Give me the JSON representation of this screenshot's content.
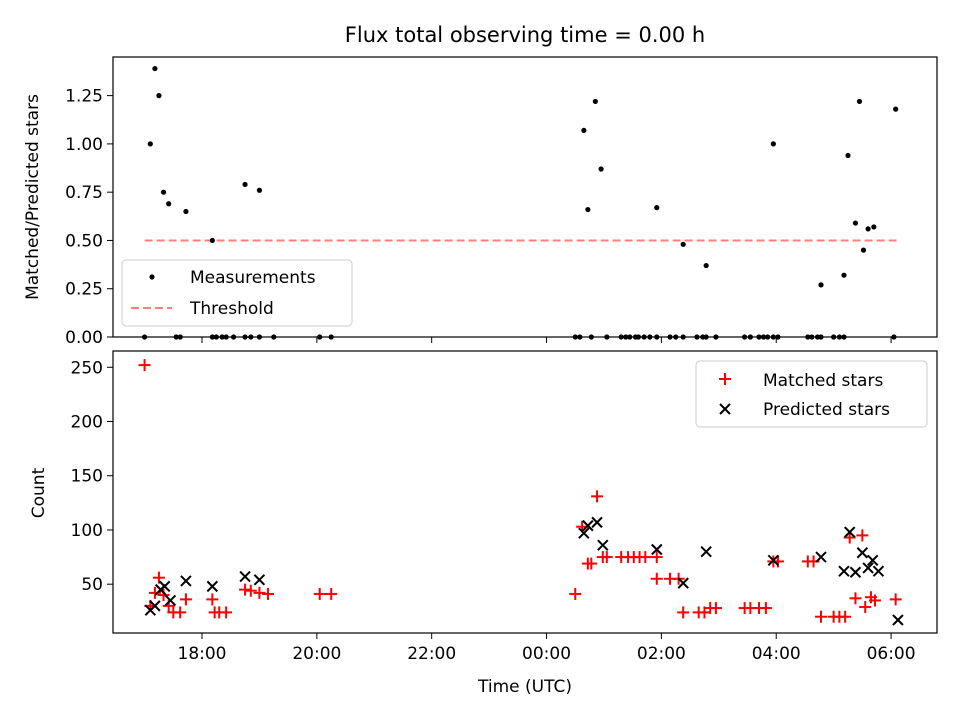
{
  "chart_data": [
    {
      "type": "scatter",
      "title": "Flux total observing time = 0.00 h",
      "xlabel": "",
      "ylabel": "Matched/Predicted stars",
      "xlim": [
        16.45,
        30.8
      ],
      "ylim": [
        0,
        1.45
      ],
      "yticks": [
        0,
        0.25,
        0.5,
        0.75,
        1.0,
        1.25
      ],
      "ytick_labels": [
        "0.00",
        "0.25",
        "0.50",
        "0.75",
        "1.00",
        "1.25"
      ],
      "legend_position": "bottom-left",
      "series": [
        {
          "name": "Measurements",
          "kind": "dot",
          "color": "#000000",
          "points": [
            [
              17.0,
              0
            ],
            [
              17.1,
              1.0
            ],
            [
              17.18,
              1.39
            ],
            [
              17.25,
              1.25
            ],
            [
              17.33,
              0.75
            ],
            [
              17.42,
              0.69
            ],
            [
              17.55,
              0
            ],
            [
              17.62,
              0
            ],
            [
              17.72,
              0.65
            ],
            [
              18.18,
              0.5
            ],
            [
              18.18,
              0
            ],
            [
              18.25,
              0
            ],
            [
              18.35,
              0
            ],
            [
              18.42,
              0
            ],
            [
              18.55,
              0
            ],
            [
              18.75,
              0.79
            ],
            [
              18.75,
              0
            ],
            [
              18.85,
              0
            ],
            [
              19.0,
              0.76
            ],
            [
              19.0,
              0
            ],
            [
              19.25,
              0
            ],
            [
              20.05,
              0
            ],
            [
              20.25,
              0
            ],
            [
              24.5,
              0
            ],
            [
              24.58,
              0
            ],
            [
              24.65,
              1.07
            ],
            [
              24.72,
              0.66
            ],
            [
              24.78,
              0
            ],
            [
              24.85,
              1.22
            ],
            [
              24.95,
              0.87
            ],
            [
              25.05,
              0
            ],
            [
              25.3,
              0
            ],
            [
              25.38,
              0
            ],
            [
              25.45,
              0
            ],
            [
              25.55,
              0
            ],
            [
              25.6,
              0
            ],
            [
              25.7,
              0
            ],
            [
              25.8,
              0
            ],
            [
              25.92,
              0.67
            ],
            [
              25.92,
              0
            ],
            [
              26.15,
              0
            ],
            [
              26.25,
              0
            ],
            [
              26.38,
              0.48
            ],
            [
              26.38,
              0
            ],
            [
              26.62,
              0
            ],
            [
              26.72,
              0
            ],
            [
              26.78,
              0.37
            ],
            [
              26.78,
              0
            ],
            [
              26.95,
              0
            ],
            [
              27.45,
              0
            ],
            [
              27.55,
              0
            ],
            [
              27.7,
              0
            ],
            [
              27.78,
              0
            ],
            [
              27.85,
              0
            ],
            [
              27.95,
              1.0
            ],
            [
              27.95,
              0
            ],
            [
              28.03,
              0
            ],
            [
              28.55,
              0
            ],
            [
              28.62,
              0
            ],
            [
              28.72,
              0
            ],
            [
              28.78,
              0.27
            ],
            [
              28.78,
              0
            ],
            [
              29.0,
              0
            ],
            [
              29.1,
              0
            ],
            [
              29.18,
              0.32
            ],
            [
              29.18,
              0
            ],
            [
              29.25,
              0.94
            ],
            [
              29.38,
              0.59
            ],
            [
              29.45,
              1.22
            ],
            [
              29.52,
              0.45
            ],
            [
              29.6,
              0.56
            ],
            [
              29.7,
              0.57
            ],
            [
              30.05,
              0
            ],
            [
              30.08,
              1.18
            ]
          ]
        },
        {
          "name": "Threshold",
          "kind": "dashed-line",
          "color": "#ff7f7f",
          "x": [
            17.0,
            30.12
          ],
          "y": [
            0.5,
            0.5
          ]
        }
      ]
    },
    {
      "type": "scatter",
      "title": "",
      "xlabel": "Time (UTC)",
      "ylabel": "Count",
      "xlim": [
        16.45,
        30.8
      ],
      "ylim": [
        5,
        265
      ],
      "yticks": [
        50,
        100,
        150,
        200,
        250
      ],
      "xticks": [
        18,
        20,
        22,
        24,
        26,
        28,
        30
      ],
      "xtick_labels": [
        "18:00",
        "20:00",
        "22:00",
        "00:00",
        "02:00",
        "04:00",
        "06:00"
      ],
      "legend_position": "top-right",
      "series": [
        {
          "name": "Matched stars",
          "marker": "+",
          "color": "#ff0000",
          "points": [
            [
              17.0,
              252
            ],
            [
              17.1,
              30
            ],
            [
              17.18,
              42
            ],
            [
              17.25,
              56
            ],
            [
              17.33,
              40
            ],
            [
              17.42,
              30
            ],
            [
              17.5,
              24
            ],
            [
              17.62,
              24
            ],
            [
              17.72,
              36
            ],
            [
              18.18,
              36
            ],
            [
              18.22,
              24
            ],
            [
              18.3,
              24
            ],
            [
              18.42,
              24
            ],
            [
              18.75,
              45
            ],
            [
              18.85,
              44
            ],
            [
              19.0,
              42
            ],
            [
              19.15,
              41
            ],
            [
              20.05,
              41
            ],
            [
              20.25,
              41
            ],
            [
              24.5,
              41
            ],
            [
              24.62,
              103
            ],
            [
              24.72,
              69
            ],
            [
              24.78,
              69
            ],
            [
              24.88,
              131
            ],
            [
              24.98,
              75
            ],
            [
              25.05,
              75
            ],
            [
              25.3,
              75
            ],
            [
              25.42,
              75
            ],
            [
              25.52,
              75
            ],
            [
              25.62,
              75
            ],
            [
              25.72,
              75
            ],
            [
              25.92,
              75
            ],
            [
              25.92,
              55
            ],
            [
              26.15,
              55
            ],
            [
              26.3,
              55
            ],
            [
              26.38,
              24
            ],
            [
              26.65,
              24
            ],
            [
              26.75,
              24
            ],
            [
              26.85,
              28
            ],
            [
              26.95,
              28
            ],
            [
              27.45,
              28
            ],
            [
              27.55,
              28
            ],
            [
              27.7,
              28
            ],
            [
              27.82,
              28
            ],
            [
              27.95,
              71
            ],
            [
              28.03,
              71
            ],
            [
              28.55,
              71
            ],
            [
              28.65,
              71
            ],
            [
              28.78,
              20
            ],
            [
              29.0,
              20
            ],
            [
              29.1,
              20
            ],
            [
              29.2,
              20
            ],
            [
              29.28,
              93
            ],
            [
              29.38,
              37
            ],
            [
              29.5,
              95
            ],
            [
              29.55,
              29
            ],
            [
              29.65,
              38
            ],
            [
              29.72,
              35
            ],
            [
              30.08,
              36
            ]
          ]
        },
        {
          "name": "Predicted stars",
          "marker": "x",
          "color": "#000000",
          "points": [
            [
              17.1,
              26
            ],
            [
              17.18,
              30
            ],
            [
              17.28,
              45
            ],
            [
              17.35,
              48
            ],
            [
              17.45,
              35
            ],
            [
              17.72,
              53
            ],
            [
              18.18,
              48
            ],
            [
              18.75,
              57
            ],
            [
              19.0,
              54
            ],
            [
              24.65,
              97
            ],
            [
              24.72,
              104
            ],
            [
              24.88,
              107
            ],
            [
              24.98,
              86
            ],
            [
              25.92,
              82
            ],
            [
              26.38,
              51
            ],
            [
              26.78,
              80
            ],
            [
              27.95,
              72
            ],
            [
              28.78,
              75
            ],
            [
              29.18,
              62
            ],
            [
              29.28,
              98
            ],
            [
              29.38,
              61
            ],
            [
              29.5,
              79
            ],
            [
              29.6,
              65
            ],
            [
              29.68,
              72
            ],
            [
              29.78,
              62
            ],
            [
              30.12,
              17
            ]
          ]
        }
      ]
    }
  ]
}
